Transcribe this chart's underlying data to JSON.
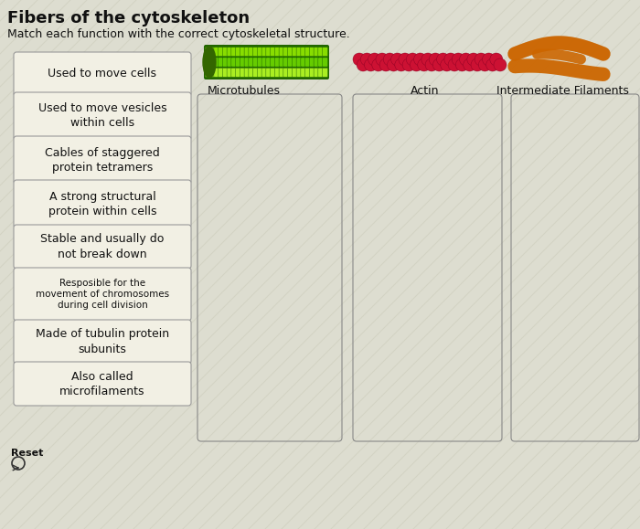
{
  "title": "Fibers of the cytoskeleton",
  "subtitle": "Match each function with the correct cytoskeletal structure.",
  "bg_color": "#ddddd0",
  "card_bg": "#f2f0e4",
  "card_edge": "#999999",
  "drop_bg": "none",
  "drop_edge": "#888888",
  "function_labels": [
    "Used to move cells",
    "Used to move vesicles\nwithin cells",
    "Cables of staggered\nprotein tetramers",
    "A strong structural\nprotein within cells",
    "Stable and usually do\nnot break down",
    "Resposible for the\nmovement of chromosomes\nduring cell division",
    "Made of tubulin protein\nsubunits",
    "Also called\nmicrofilaments"
  ],
  "structure_labels": [
    "Microtubules",
    "Actin",
    "Intermediate Filaments"
  ],
  "reset_label": "Reset",
  "mt_color_outer": "#228800",
  "mt_color_inner": "#aaee00",
  "mt_color_dot": "#88dd00",
  "actin_color": "#cc1133",
  "if_color": "#cc6600",
  "title_fontsize": 13,
  "subtitle_fontsize": 9,
  "card_fontsize": 8,
  "struct_fontsize": 9
}
